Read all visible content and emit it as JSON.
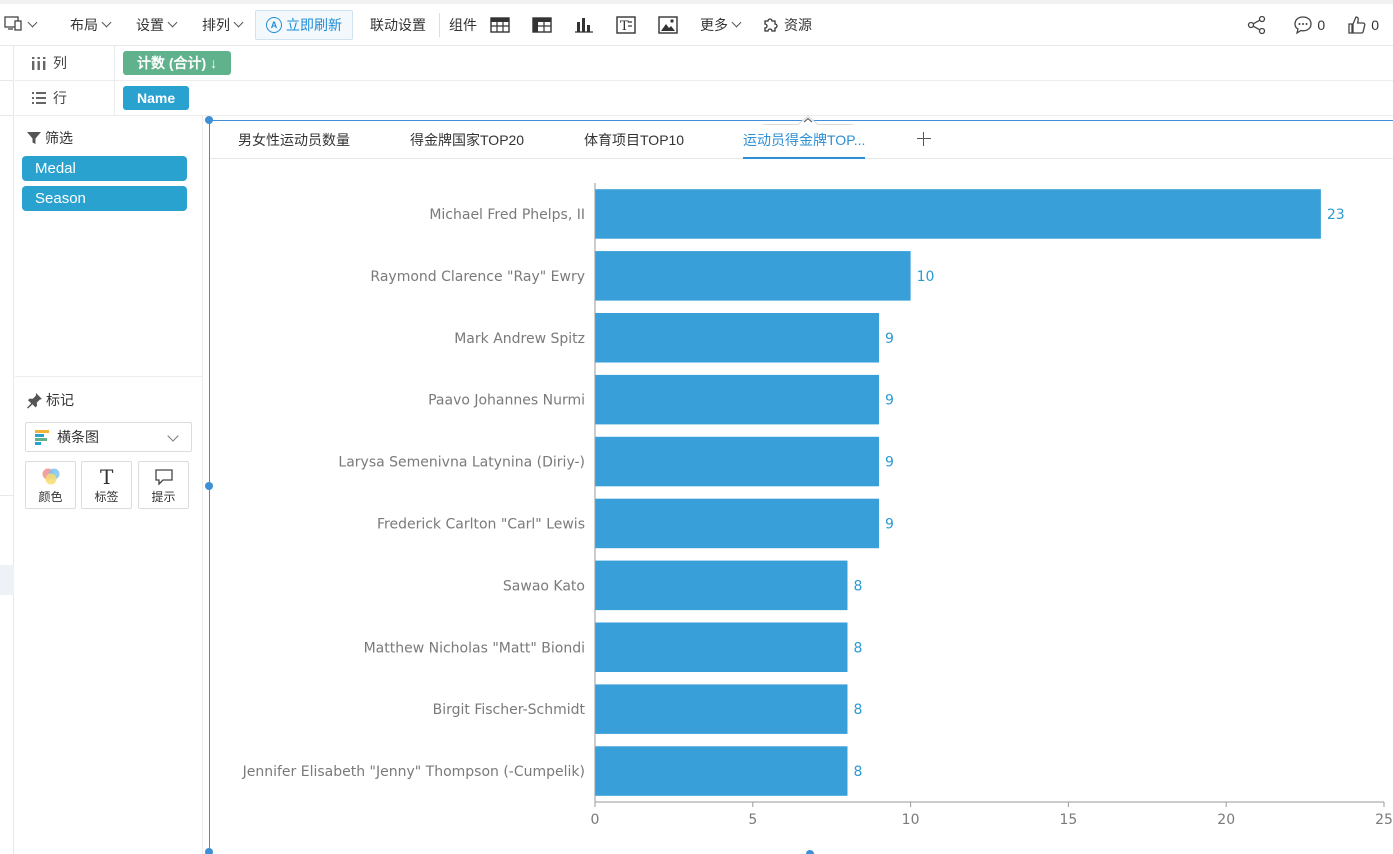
{
  "toolbar": {
    "layout": "布局",
    "settings": "设置",
    "arrange": "排列",
    "refresh": "立即刷新",
    "linkage": "联动设置",
    "components": "组件",
    "more": "更多",
    "resources": "资源",
    "comments_count": "0",
    "likes_count": "0",
    "component_icons": [
      "table-icon",
      "crosstab-icon",
      "bar-chart-icon",
      "text-icon",
      "image-icon"
    ]
  },
  "shelves": {
    "columns_label": "列",
    "columns_pill": "计数 (合计) ↓",
    "rows_label": "行",
    "rows_pill": "Name"
  },
  "side": {
    "filter_title": "筛选",
    "filters": [
      "Medal",
      "Season"
    ],
    "marks_title": "标记",
    "chart_type": "横条图",
    "mark_buttons": {
      "color": "颜色",
      "label": "标签",
      "tooltip": "提示"
    }
  },
  "tabs": [
    "男女性运动员数量",
    "得金牌国家TOP20",
    "体育项目TOP10",
    "运动员得金牌TOP..."
  ],
  "active_tab": 3,
  "colors": {
    "bar": "#399fd8",
    "accent": "#2d8fd5",
    "green_pill": "#5fb28c",
    "blue_pill": "#2aa2d0"
  },
  "chart_data": {
    "type": "bar",
    "orientation": "horizontal",
    "categories": [
      "Michael Fred Phelps, II",
      "Raymond Clarence \"Ray\" Ewry",
      "Mark Andrew Spitz",
      "Paavo Johannes Nurmi",
      "Larysa Semenivna Latynina (Diriy-)",
      "Frederick Carlton \"Carl\" Lewis",
      "Sawao Kato",
      "Matthew Nicholas \"Matt\" Biondi",
      "Birgit Fischer-Schmidt",
      "Jennifer Elisabeth \"Jenny\" Thompson (-Cumpelik)"
    ],
    "values": [
      23,
      10,
      9,
      9,
      9,
      9,
      8,
      8,
      8,
      8
    ],
    "xlim": [
      0,
      25
    ],
    "xticks": [
      0,
      5,
      10,
      15,
      20,
      25
    ],
    "data_labels": true,
    "grid": false
  }
}
